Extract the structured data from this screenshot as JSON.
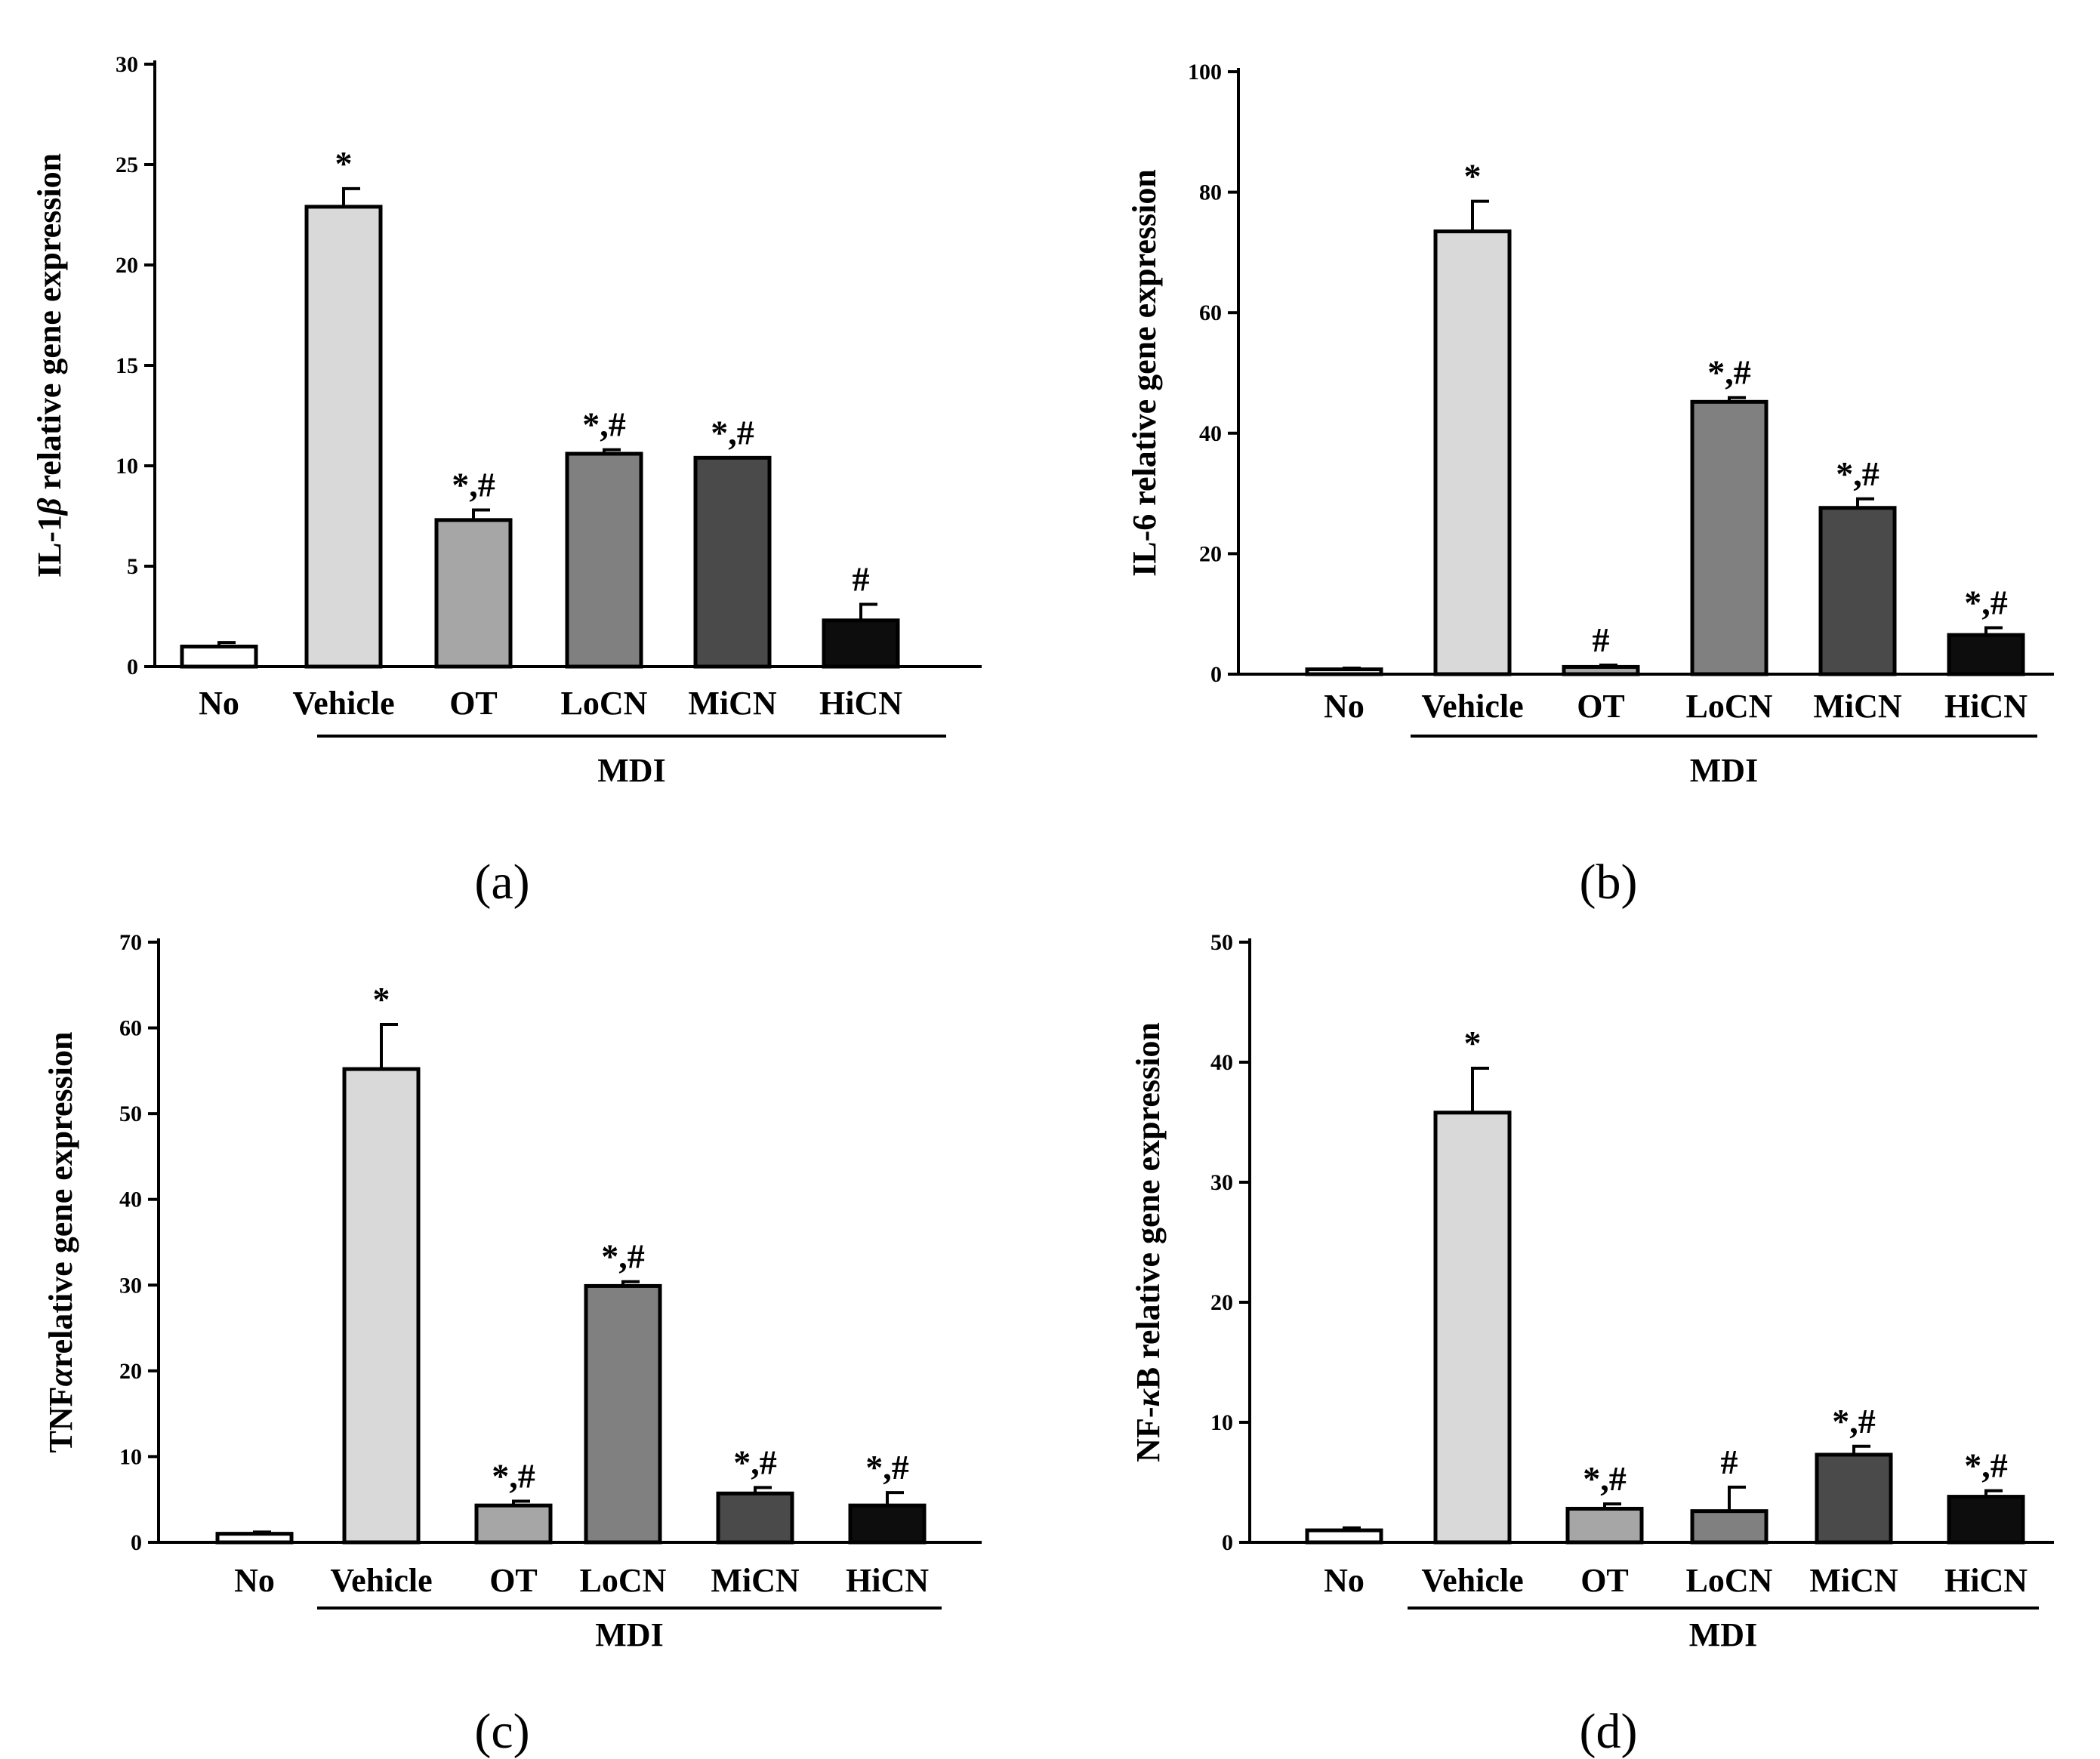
{
  "colors": {
    "No": "#ffffff",
    "Vehicle": "#d9d9d9",
    "OT": "#a6a6a6",
    "LoCN": "#808080",
    "MiCN": "#4a4a4a",
    "HiCN": "#0d0d0d",
    "axis": "#000000"
  },
  "chart_data": [
    {
      "type": "bar",
      "panel_label": "(a)",
      "title": "",
      "ylabel_parts": [
        "IL-1",
        "β",
        " relative gene expression"
      ],
      "ylim": [
        0,
        30
      ],
      "yticks": [
        0,
        5,
        10,
        15,
        20,
        25,
        30
      ],
      "categories": [
        "No",
        "Vehicle",
        "OT",
        "LoCN",
        "MiCN",
        "HiCN"
      ],
      "values": [
        1,
        22.9,
        7.3,
        10.6,
        10.4,
        2.3
      ],
      "errors": [
        0.2,
        0.9,
        0.5,
        0.2,
        0,
        0.8
      ],
      "annotations": [
        "",
        "*",
        "*,#",
        "*,#",
        "*,#",
        "#"
      ],
      "group_label": "MDI",
      "group_span": [
        "Vehicle",
        "HiCN"
      ]
    },
    {
      "type": "bar",
      "panel_label": "(b)",
      "title": "",
      "ylabel_parts": [
        "IL-6 relative gene expression"
      ],
      "ylim": [
        0,
        100
      ],
      "yticks": [
        0,
        20,
        40,
        60,
        80,
        100
      ],
      "categories": [
        "No",
        "Vehicle",
        "OT",
        "LoCN",
        "MiCN",
        "HiCN"
      ],
      "values": [
        0.8,
        73.5,
        1.2,
        45.2,
        27.6,
        6.5
      ],
      "errors": [
        0.2,
        5,
        0.3,
        0.7,
        1.5,
        1.2
      ],
      "annotations": [
        "",
        "*",
        "#",
        "*,#",
        "*,#",
        "*,#"
      ],
      "group_label": "MDI",
      "group_span": [
        "Vehicle",
        "HiCN"
      ]
    },
    {
      "type": "bar",
      "panel_label": "(c)",
      "title": "",
      "ylabel_parts": [
        "TNF",
        "α",
        "relative gene expression"
      ],
      "ylim": [
        0,
        70
      ],
      "yticks": [
        0,
        10,
        20,
        30,
        40,
        50,
        60,
        70
      ],
      "categories": [
        "No",
        "Vehicle",
        "OT",
        "LoCN",
        "MiCN",
        "HiCN"
      ],
      "values": [
        1,
        55.2,
        4.3,
        29.9,
        5.7,
        4.3
      ],
      "errors": [
        0.2,
        5.2,
        0.5,
        0.5,
        0.7,
        1.5
      ],
      "annotations": [
        "",
        "*",
        "*,#",
        "*,#",
        "*,#",
        "*,#"
      ],
      "group_label": "MDI",
      "group_span": [
        "Vehicle",
        "HiCN"
      ]
    },
    {
      "type": "bar",
      "panel_label": "(d)",
      "title": "",
      "ylabel_parts": [
        "NF-",
        "κ",
        "B relative gene expression"
      ],
      "ylim": [
        0,
        50
      ],
      "yticks": [
        0,
        10,
        20,
        30,
        40,
        50
      ],
      "categories": [
        "No",
        "Vehicle",
        "OT",
        "LoCN",
        "MiCN",
        "HiCN"
      ],
      "values": [
        1,
        35.8,
        2.8,
        2.6,
        7.3,
        3.8
      ],
      "errors": [
        0.2,
        3.7,
        0.4,
        2,
        0.7,
        0.5
      ],
      "annotations": [
        "",
        "*",
        "*,#",
        "#",
        "*,#",
        "*,#"
      ],
      "group_label": "MDI",
      "group_span": [
        "Vehicle",
        "HiCN"
      ]
    }
  ]
}
